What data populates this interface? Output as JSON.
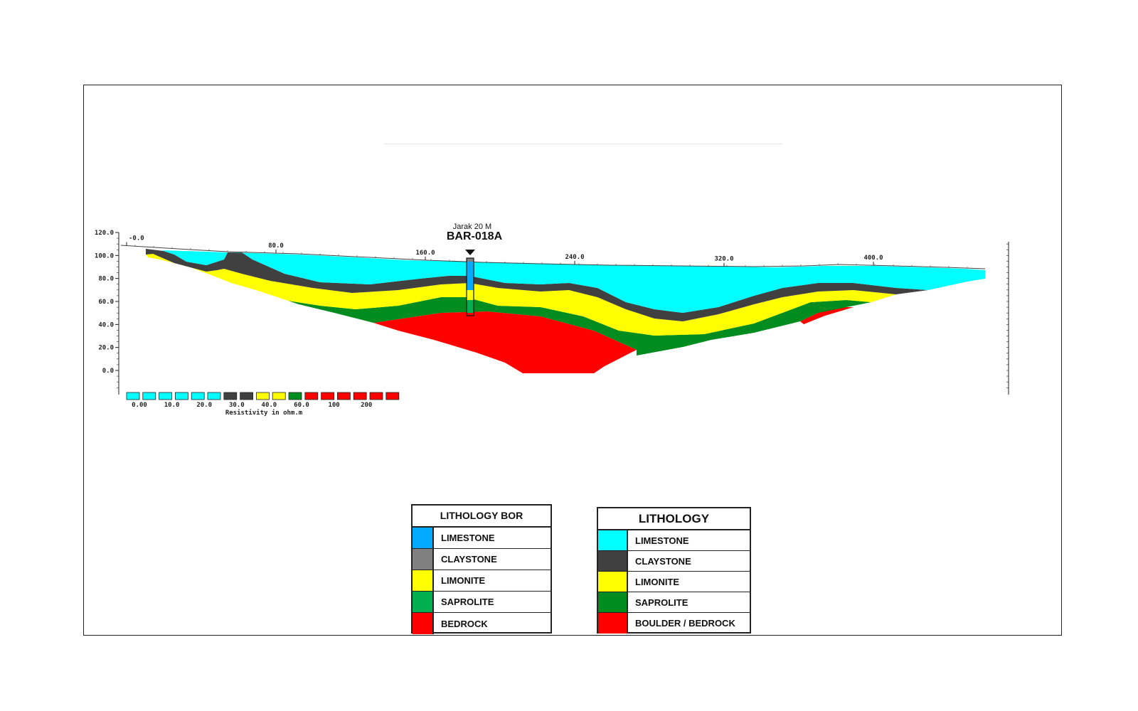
{
  "section": {
    "borehole_spacing": "Jarak 20 M",
    "borehole_id": "BAR-018A",
    "x_ticks": [
      {
        "value": -0.0,
        "label": "-0.0"
      },
      {
        "value": 80,
        "label": "80.0"
      },
      {
        "value": 160,
        "label": "160.0"
      },
      {
        "value": 240,
        "label": "240.0"
      },
      {
        "value": 320,
        "label": "320.0"
      },
      {
        "value": 400,
        "label": "400.0"
      }
    ],
    "y_ticks": [
      {
        "value": 120,
        "label": "120.0"
      },
      {
        "value": 100,
        "label": "100.0"
      },
      {
        "value": 80,
        "label": "80.0"
      },
      {
        "value": 60,
        "label": "60.0"
      },
      {
        "value": 40,
        "label": "40.0"
      },
      {
        "value": 20,
        "label": "20.0"
      },
      {
        "value": 0,
        "label": "0.0"
      }
    ],
    "layer_colors": {
      "limestone": "#00ffff",
      "claystone": "#404040",
      "limonite": "#ffff00",
      "saprolite": "#008c1e",
      "bedrock": "#ff0000"
    }
  },
  "resistivity_scale": {
    "title": "Resistivity in ohm.m",
    "swatches": [
      "#00ffff",
      "#00ffff",
      "#00ffff",
      "#00ffff",
      "#00ffff",
      "#00ffff",
      "#404040",
      "#404040",
      "#ffff00",
      "#ffff00",
      "#008c1e",
      "#ff0000",
      "#ff0000",
      "#ff0000",
      "#ff0000",
      "#ff0000",
      "#ff0000"
    ],
    "labels": [
      "0.00",
      "10.0",
      "20.0",
      "30.0",
      "40.0",
      "60.0",
      "100",
      "200"
    ]
  },
  "legend_bor": {
    "title": "LITHOLOGY BOR",
    "items": [
      {
        "label": "LIMESTONE",
        "color": "#00aaff"
      },
      {
        "label": "CLAYSTONE",
        "color": "#808080"
      },
      {
        "label": "LIMONITE",
        "color": "#ffff00"
      },
      {
        "label": "SAPROLITE",
        "color": "#00b050"
      },
      {
        "label": "BEDROCK",
        "color": "#ff0000"
      }
    ]
  },
  "legend_lithology": {
    "title": "LITHOLOGY",
    "items": [
      {
        "label": "LIMESTONE",
        "color": "#00ffff"
      },
      {
        "label": "CLAYSTONE",
        "color": "#404040"
      },
      {
        "label": "LIMONITE",
        "color": "#ffff00"
      },
      {
        "label": "SAPROLITE",
        "color": "#008c1e"
      },
      {
        "label": "BOULDER / BEDROCK",
        "color": "#ff0000"
      }
    ]
  }
}
